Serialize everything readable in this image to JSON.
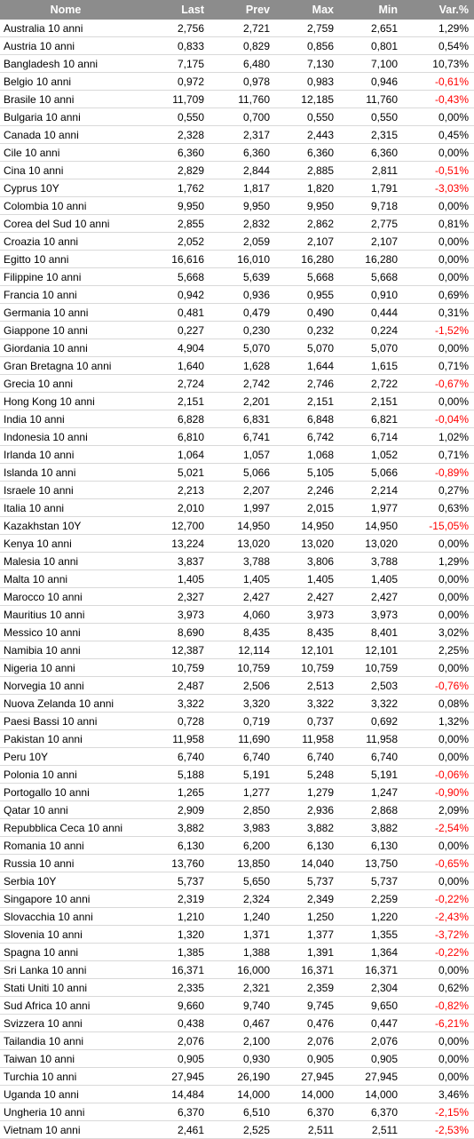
{
  "colors": {
    "header_bg": "#8c8c8c",
    "header_text": "#ffffff",
    "negative": "#ff0000",
    "row_divider": "#d9d9d9"
  },
  "table": {
    "headers": [
      "Nome",
      "Last",
      "Prev",
      "Max",
      "Min",
      "Var.%"
    ],
    "rows": [
      [
        "Australia 10 anni",
        "2,756",
        "2,721",
        "2,759",
        "2,651",
        "1,29%"
      ],
      [
        "Austria 10 anni",
        "0,833",
        "0,829",
        "0,856",
        "0,801",
        "0,54%"
      ],
      [
        "Bangladesh 10 anni",
        "7,175",
        "6,480",
        "7,130",
        "7,100",
        "10,73%"
      ],
      [
        "Belgio 10 anni",
        "0,972",
        "0,978",
        "0,983",
        "0,946",
        "-0,61%"
      ],
      [
        "Brasile 10 anni",
        "11,709",
        "11,760",
        "12,185",
        "11,760",
        "-0,43%"
      ],
      [
        "Bulgaria 10 anni",
        "0,550",
        "0,700",
        "0,550",
        "0,550",
        "0,00%"
      ],
      [
        "Canada 10 anni",
        "2,328",
        "2,317",
        "2,443",
        "2,315",
        "0,45%"
      ],
      [
        "Cile 10 anni",
        "6,360",
        "6,360",
        "6,360",
        "6,360",
        "0,00%"
      ],
      [
        "Cina 10 anni",
        "2,829",
        "2,844",
        "2,885",
        "2,811",
        "-0,51%"
      ],
      [
        "Cyprus 10Y",
        "1,762",
        "1,817",
        "1,820",
        "1,791",
        "-3,03%"
      ],
      [
        "Colombia 10 anni",
        "9,950",
        "9,950",
        "9,950",
        "9,718",
        "0,00%"
      ],
      [
        "Corea del Sud 10 anni",
        "2,855",
        "2,832",
        "2,862",
        "2,775",
        "0,81%"
      ],
      [
        "Croazia 10 anni",
        "2,052",
        "2,059",
        "2,107",
        "2,107",
        "0,00%"
      ],
      [
        "Egitto 10 anni",
        "16,616",
        "16,010",
        "16,280",
        "16,280",
        "0,00%"
      ],
      [
        "Filippine 10 anni",
        "5,668",
        "5,639",
        "5,668",
        "5,668",
        "0,00%"
      ],
      [
        "Francia 10 anni",
        "0,942",
        "0,936",
        "0,955",
        "0,910",
        "0,69%"
      ],
      [
        "Germania 10 anni",
        "0,481",
        "0,479",
        "0,490",
        "0,444",
        "0,31%"
      ],
      [
        "Giappone 10 anni",
        "0,227",
        "0,230",
        "0,232",
        "0,224",
        "-1,52%"
      ],
      [
        "Giordania 10 anni",
        "4,904",
        "5,070",
        "5,070",
        "5,070",
        "0,00%"
      ],
      [
        "Gran Bretagna 10 anni",
        "1,640",
        "1,628",
        "1,644",
        "1,615",
        "0,71%"
      ],
      [
        "Grecia 10 anni",
        "2,724",
        "2,742",
        "2,746",
        "2,722",
        "-0,67%"
      ],
      [
        "Hong Kong 10 anni",
        "2,151",
        "2,201",
        "2,151",
        "2,151",
        "0,00%"
      ],
      [
        "India 10 anni",
        "6,828",
        "6,831",
        "6,848",
        "6,821",
        "-0,04%"
      ],
      [
        "Indonesia 10 anni",
        "6,810",
        "6,741",
        "6,742",
        "6,714",
        "1,02%"
      ],
      [
        "Irlanda 10 anni",
        "1,064",
        "1,057",
        "1,068",
        "1,052",
        "0,71%"
      ],
      [
        "Islanda 10 anni",
        "5,021",
        "5,066",
        "5,105",
        "5,066",
        "-0,89%"
      ],
      [
        "Israele 10 anni",
        "2,213",
        "2,207",
        "2,246",
        "2,214",
        "0,27%"
      ],
      [
        "Italia 10 anni",
        "2,010",
        "1,997",
        "2,015",
        "1,977",
        "0,63%"
      ],
      [
        "Kazakhstan 10Y",
        "12,700",
        "14,950",
        "14,950",
        "14,950",
        "-15,05%"
      ],
      [
        "Kenya 10 anni",
        "13,224",
        "13,020",
        "13,020",
        "13,020",
        "0,00%"
      ],
      [
        "Malesia 10 anni",
        "3,837",
        "3,788",
        "3,806",
        "3,788",
        "1,29%"
      ],
      [
        "Malta 10 anni",
        "1,405",
        "1,405",
        "1,405",
        "1,405",
        "0,00%"
      ],
      [
        "Marocco 10 anni",
        "2,327",
        "2,427",
        "2,427",
        "2,427",
        "0,00%"
      ],
      [
        "Mauritius 10 anni",
        "3,973",
        "4,060",
        "3,973",
        "3,973",
        "0,00%"
      ],
      [
        "Messico 10 anni",
        "8,690",
        "8,435",
        "8,435",
        "8,401",
        "3,02%"
      ],
      [
        "Namibia 10 anni",
        "12,387",
        "12,114",
        "12,101",
        "12,101",
        "2,25%"
      ],
      [
        "Nigeria 10 anni",
        "10,759",
        "10,759",
        "10,759",
        "10,759",
        "0,00%"
      ],
      [
        "Norvegia 10 anni",
        "2,487",
        "2,506",
        "2,513",
        "2,503",
        "-0,76%"
      ],
      [
        "Nuova Zelanda 10 anni",
        "3,322",
        "3,320",
        "3,322",
        "3,322",
        "0,08%"
      ],
      [
        "Paesi Bassi 10 anni",
        "0,728",
        "0,719",
        "0,737",
        "0,692",
        "1,32%"
      ],
      [
        "Pakistan 10 anni",
        "11,958",
        "11,690",
        "11,958",
        "11,958",
        "0,00%"
      ],
      [
        "Peru 10Y",
        "6,740",
        "6,740",
        "6,740",
        "6,740",
        "0,00%"
      ],
      [
        "Polonia 10 anni",
        "5,188",
        "5,191",
        "5,248",
        "5,191",
        "-0,06%"
      ],
      [
        "Portogallo 10 anni",
        "1,265",
        "1,277",
        "1,279",
        "1,247",
        "-0,90%"
      ],
      [
        "Qatar 10 anni",
        "2,909",
        "2,850",
        "2,936",
        "2,868",
        "2,09%"
      ],
      [
        "Repubblica Ceca 10 anni",
        "3,882",
        "3,983",
        "3,882",
        "3,882",
        "-2,54%"
      ],
      [
        "Romania 10 anni",
        "6,130",
        "6,200",
        "6,130",
        "6,130",
        "0,00%"
      ],
      [
        "Russia 10 anni",
        "13,760",
        "13,850",
        "14,040",
        "13,750",
        "-0,65%"
      ],
      [
        "Serbia 10Y",
        "5,737",
        "5,650",
        "5,737",
        "5,737",
        "0,00%"
      ],
      [
        "Singapore 10 anni",
        "2,319",
        "2,324",
        "2,349",
        "2,259",
        "-0,22%"
      ],
      [
        "Slovacchia 10 anni",
        "1,210",
        "1,240",
        "1,250",
        "1,220",
        "-2,43%"
      ],
      [
        "Slovenia 10 anni",
        "1,320",
        "1,371",
        "1,377",
        "1,355",
        "-3,72%"
      ],
      [
        "Spagna 10 anni",
        "1,385",
        "1,388",
        "1,391",
        "1,364",
        "-0,22%"
      ],
      [
        "Sri Lanka 10 anni",
        "16,371",
        "16,000",
        "16,371",
        "16,371",
        "0,00%"
      ],
      [
        "Stati Uniti 10 anni",
        "2,335",
        "2,321",
        "2,359",
        "2,304",
        "0,62%"
      ],
      [
        "Sud Africa 10 anni",
        "9,660",
        "9,740",
        "9,745",
        "9,650",
        "-0,82%"
      ],
      [
        "Svizzera 10 anni",
        "0,438",
        "0,467",
        "0,476",
        "0,447",
        "-6,21%"
      ],
      [
        "Tailandia 10 anni",
        "2,076",
        "2,100",
        "2,076",
        "2,076",
        "0,00%"
      ],
      [
        "Taiwan 10 anni",
        "0,905",
        "0,930",
        "0,905",
        "0,905",
        "0,00%"
      ],
      [
        "Turchia 10 anni",
        "27,945",
        "26,190",
        "27,945",
        "27,945",
        "0,00%"
      ],
      [
        "Uganda 10 anni",
        "14,484",
        "14,000",
        "14,000",
        "14,000",
        "3,46%"
      ],
      [
        "Ungheria 10 anni",
        "6,370",
        "6,510",
        "6,370",
        "6,370",
        "-2,15%"
      ],
      [
        "Vietnam 10 anni",
        "2,461",
        "2,525",
        "2,511",
        "2,511",
        "-2,53%"
      ]
    ]
  }
}
